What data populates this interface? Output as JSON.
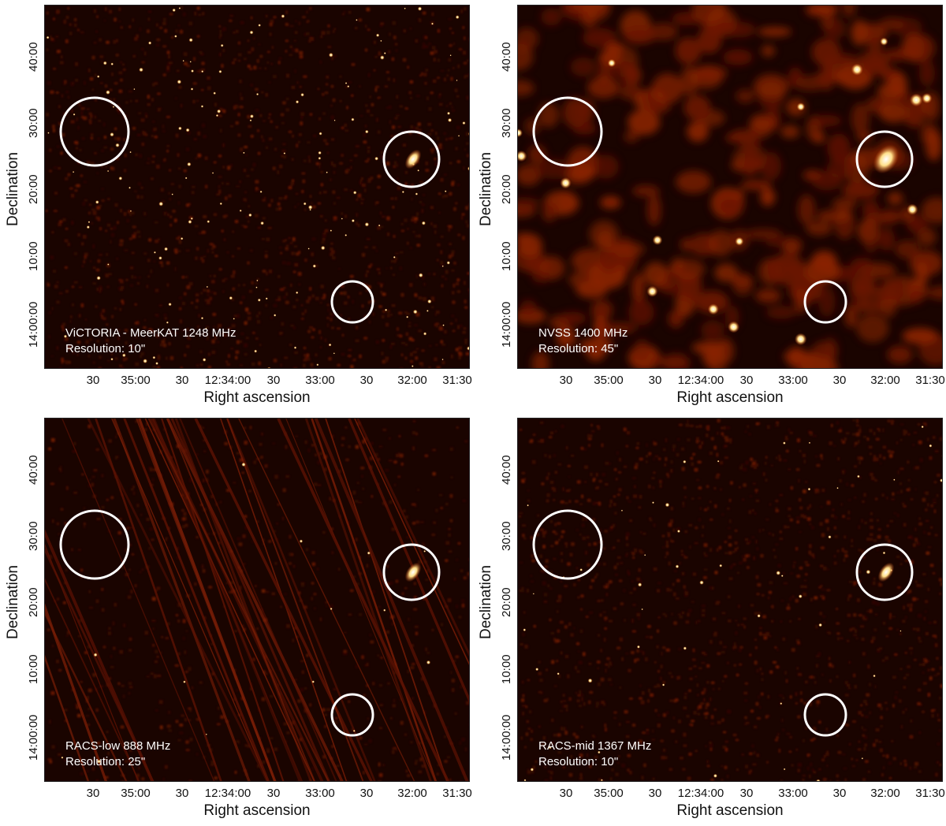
{
  "panels": [
    {
      "title": "ViCTORIA - MeerKAT 1248 MHz",
      "resolution": "Resolution: 10\"",
      "style": "meerkat"
    },
    {
      "title": "NVSS 1400 MHz",
      "resolution": "Resolution: 45\"",
      "style": "nvss"
    },
    {
      "title": "RACS-low 888 MHz",
      "resolution": "Resolution: 25\"",
      "style": "racslow"
    },
    {
      "title": "RACS-mid 1367 MHz",
      "resolution": "Resolution: 10\"",
      "style": "racsmid"
    }
  ],
  "axes": {
    "xlabel": "Right ascension",
    "ylabel": "Declination",
    "xticks": [
      "30",
      "35:00",
      "30",
      "12:34:00",
      "30",
      "33:00",
      "30",
      "32:00",
      "31:30"
    ],
    "yticks": [
      "40:00",
      "30:00",
      "20:00",
      "10:00",
      "14:00:00"
    ]
  },
  "colors": {
    "background": "#1a0400",
    "noise": "#4a0e02",
    "source": "#ffe08a",
    "circle": "#ffffff"
  }
}
